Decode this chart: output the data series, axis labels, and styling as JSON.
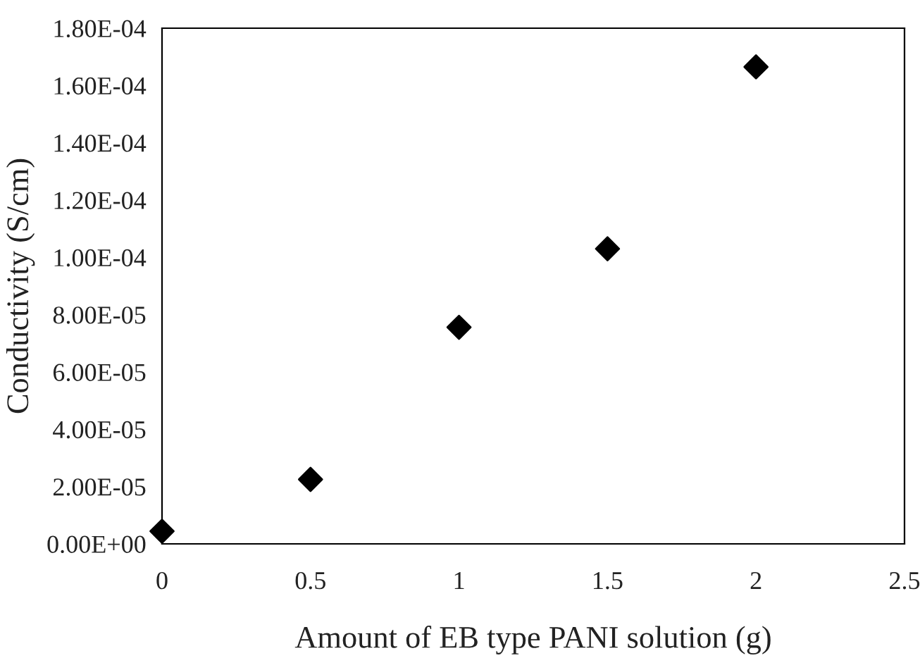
{
  "chart_data": {
    "type": "scatter",
    "xlabel": "Amount of EB type PANI solution (g)",
    "ylabel": "Conductivity (S/cm)",
    "x": [
      0,
      0.5,
      1,
      1.5,
      2
    ],
    "series": [
      {
        "color": "#000000",
        "values": [
          4.4e-06,
          2.25e-05,
          7.56e-05,
          0.000103,
          0.0001665
        ]
      }
    ],
    "marker": "diamond",
    "grid": false,
    "legend": false,
    "xlim": [
      0,
      2.5
    ],
    "xticks": [
      0,
      0.5,
      1,
      1.5,
      2,
      2.5
    ],
    "ylim": [
      0,
      0.00018
    ],
    "yticks": [
      {
        "value": 0,
        "label": "0.00E+00"
      },
      {
        "value": 2e-05,
        "label": "2.00E-05"
      },
      {
        "value": 4e-05,
        "label": "4.00E-05"
      },
      {
        "value": 6e-05,
        "label": "6.00E-05"
      },
      {
        "value": 8e-05,
        "label": "8.00E-05"
      },
      {
        "value": 0.0001,
        "label": "1.00E-04"
      },
      {
        "value": 0.00012,
        "label": "1.20E-04"
      },
      {
        "value": 0.00014,
        "label": "1.40E-04"
      },
      {
        "value": 0.00016,
        "label": "1.60E-04"
      },
      {
        "value": 0.00018,
        "label": "1.80E-04"
      }
    ]
  }
}
